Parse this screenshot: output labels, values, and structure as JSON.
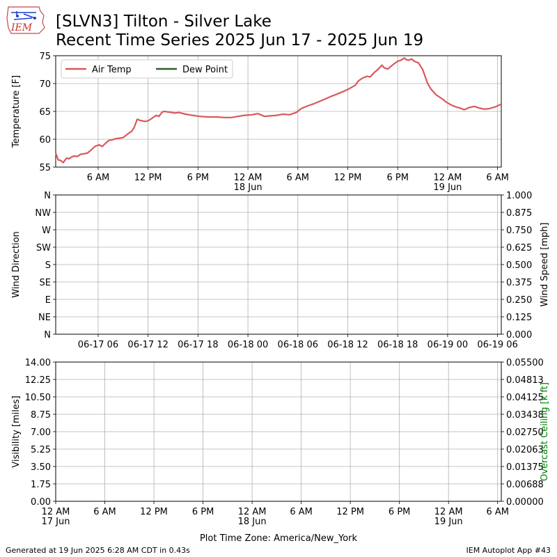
{
  "header": {
    "title_line1": "[SLVN3] Tilton - Silver Lake",
    "title_line2": "Recent Time Series 2025 Jun 17 - 2025 Jun 19",
    "logo_text": "IEM"
  },
  "footer": {
    "left": "Generated at 19 Jun 2025 6:28 AM CDT in 0.43s",
    "right": "IEM Autoplot App #43"
  },
  "colors": {
    "air_temp": "#d9575c",
    "dew_point": "#2e5e2e",
    "ceiling_axis": "#008000",
    "grid": "#b0b0b0"
  },
  "chart_data": [
    {
      "type": "line",
      "ylabel": "Temperature [F]",
      "ylim": [
        55,
        75
      ],
      "yticks": [
        55,
        60,
        65,
        70,
        75
      ],
      "x_unit": "hours since 2025-06-17 00:00 America/New_York",
      "xlim": [
        0.9,
        54.45
      ],
      "xticks": [
        6,
        12,
        18,
        24,
        30,
        36,
        42,
        48,
        54
      ],
      "xtick_labels": [
        "6 AM",
        "12 PM",
        "6 PM",
        "12 AM\n18 Jun",
        "6 AM",
        "12 PM",
        "6 PM",
        "12 AM\n19 Jun",
        "6 AM"
      ],
      "grid": true,
      "legend": "top-left",
      "series": [
        {
          "name": "Air Temp",
          "color": "#d9575c",
          "x": [
            0.9,
            1.2,
            1.5,
            1.8,
            2.0,
            2.2,
            2.5,
            2.8,
            3.1,
            3.5,
            3.9,
            4.3,
            4.7,
            5.1,
            5.6,
            6.1,
            6.5,
            6.9,
            7.3,
            7.7,
            8.1,
            8.6,
            9.0,
            9.6,
            10.0,
            10.3,
            10.7,
            11.0,
            11.3,
            11.6,
            12.0,
            12.5,
            13.0,
            13.3,
            13.7,
            14.0,
            14.4,
            14.9,
            15.2,
            15.7,
            16.5,
            17.3,
            18.2,
            19.2,
            20.2,
            21.2,
            22.0,
            22.8,
            23.6,
            24.5,
            25.2,
            26.0,
            26.7,
            27.5,
            28.2,
            29.0,
            29.8,
            30.3,
            30.7,
            31.2,
            31.8,
            32.6,
            33.4,
            34.0,
            34.7,
            35.5,
            36.2,
            36.9,
            37.3,
            37.8,
            38.3,
            38.7,
            39.2,
            39.6,
            40.1,
            40.4,
            40.8,
            41.2,
            41.7,
            42.0,
            42.4,
            42.8,
            43.0,
            43.3,
            43.7,
            44.0,
            44.5,
            45.0,
            45.6,
            46.0,
            46.6,
            47.3,
            47.9,
            48.5,
            49.0,
            49.5,
            50.0,
            50.6,
            51.2,
            51.8,
            52.4,
            53.0,
            53.7,
            54.45
          ],
          "values": [
            57.5,
            56.3,
            56.2,
            55.8,
            56.2,
            56.6,
            56.5,
            56.8,
            57.0,
            56.9,
            57.3,
            57.4,
            57.5,
            58.0,
            58.7,
            59.0,
            58.7,
            59.3,
            59.8,
            59.9,
            60.1,
            60.2,
            60.3,
            61.0,
            61.4,
            62.0,
            63.6,
            63.4,
            63.3,
            63.2,
            63.3,
            63.8,
            64.3,
            64.1,
            64.9,
            65.0,
            64.9,
            64.8,
            64.7,
            64.8,
            64.5,
            64.3,
            64.1,
            64.0,
            64.0,
            63.9,
            63.9,
            64.1,
            64.3,
            64.4,
            64.6,
            64.1,
            64.2,
            64.3,
            64.5,
            64.4,
            64.8,
            65.4,
            65.7,
            66.0,
            66.3,
            66.8,
            67.3,
            67.7,
            68.1,
            68.6,
            69.1,
            69.7,
            70.5,
            71.0,
            71.3,
            71.2,
            72.0,
            72.5,
            73.3,
            72.8,
            72.6,
            73.1,
            73.7,
            74.0,
            74.2,
            74.6,
            74.3,
            74.2,
            74.4,
            74.0,
            73.7,
            72.5,
            70.0,
            69.0,
            68.0,
            67.3,
            66.6,
            66.1,
            65.8,
            65.6,
            65.3,
            65.7,
            65.9,
            65.6,
            65.4,
            65.5,
            65.8,
            66.3
          ]
        },
        {
          "name": "Dew Point",
          "color": "#2e5e2e",
          "x": [],
          "values": []
        }
      ]
    },
    {
      "type": "line",
      "ylabel": "Wind Direction",
      "ylabel_right": "Wind Speed [mph]",
      "ylim": [
        0,
        360
      ],
      "yticks": [
        0,
        45,
        90,
        135,
        180,
        225,
        270,
        315,
        360
      ],
      "ytick_labels": [
        "N",
        "NE",
        "E",
        "SE",
        "S",
        "SW",
        "W",
        "NW",
        "N"
      ],
      "ylim_right": [
        0,
        1
      ],
      "yticks_right": [
        "0.000",
        "0.125",
        "0.250",
        "0.375",
        "0.500",
        "0.625",
        "0.750",
        "0.875",
        "1.000"
      ],
      "xlim": [
        0.9,
        54.45
      ],
      "xticks": [
        6,
        12,
        18,
        24,
        30,
        36,
        42,
        48,
        54
      ],
      "xtick_labels": [
        "06-17 06",
        "06-17 12",
        "06-17 18",
        "06-18 00",
        "06-18 06",
        "06-18 12",
        "06-18 18",
        "06-19 00",
        "06-19 06"
      ],
      "grid": true,
      "series": []
    },
    {
      "type": "line",
      "ylabel": "Visibility [miles]",
      "ylabel_right": "Overcast Ceiling [k ft]",
      "xlabel": "Plot Time Zone: America/New_York",
      "ylim": [
        0,
        14
      ],
      "yticks": [
        "0.00",
        "1.75",
        "3.50",
        "5.25",
        "7.00",
        "8.75",
        "10.50",
        "12.25",
        "14.00"
      ],
      "ylim_right": [
        0,
        0.055
      ],
      "yticks_right": [
        "0.00000",
        "0.00688",
        "0.01375",
        "0.02063",
        "0.02750",
        "0.03438",
        "0.04125",
        "0.04813",
        "0.05500"
      ],
      "xlim": [
        0,
        54.45
      ],
      "xticks": [
        0,
        6,
        12,
        18,
        24,
        30,
        36,
        42,
        48,
        54
      ],
      "xtick_labels": [
        "12 AM\n17 Jun",
        "6 AM",
        "12 PM",
        "6 PM",
        "12 AM\n18 Jun",
        "6 AM",
        "12 PM",
        "6 PM",
        "12 AM\n19 Jun",
        "6 AM"
      ],
      "grid": true,
      "series": []
    }
  ]
}
